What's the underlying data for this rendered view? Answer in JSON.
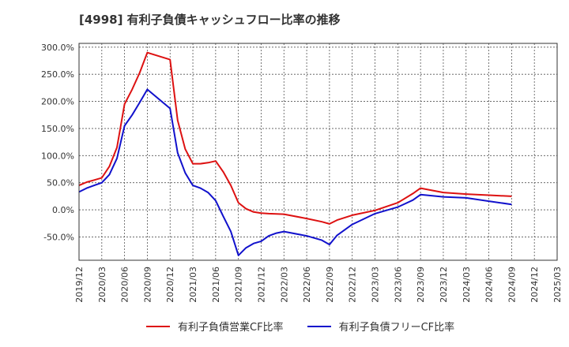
{
  "chart_data": {
    "type": "line",
    "title": "[4998]  有利子負債キャッシュフロー比率の推移",
    "x": [
      "2019/12",
      "2020/03",
      "2020/06",
      "2020/09",
      "2020/12",
      "2021/03",
      "2021/06",
      "2021/09",
      "2021/12",
      "2022/03",
      "2022/06",
      "2022/09",
      "2022/12",
      "2023/03",
      "2023/06",
      "2023/09",
      "2023/12",
      "2024/03",
      "2024/06",
      "2024/09",
      "2024/12",
      "2025/03"
    ],
    "y_ticks": [
      "300.0%",
      "250.0%",
      "200.0%",
      "150.0%",
      "100.0%",
      "50.0%",
      "0.0%",
      "-50.0%"
    ],
    "ylim": [
      -93,
      307
    ],
    "grid": true,
    "legend_position": "bottom",
    "series": [
      {
        "name": "有利子負債営業CF比率",
        "color": "#dd1111",
        "points": [
          [
            "2019/12",
            45
          ],
          [
            "2020/01",
            51
          ],
          [
            "2020/02",
            55
          ],
          [
            "2020/03",
            59
          ],
          [
            "2020/04",
            80
          ],
          [
            "2020/05",
            115
          ],
          [
            "2020/06",
            195
          ],
          [
            "2020/07",
            222
          ],
          [
            "2020/08",
            253
          ],
          [
            "2020/09",
            290
          ],
          [
            "2020/12",
            277
          ],
          [
            "2021/01",
            165
          ],
          [
            "2021/02",
            112
          ],
          [
            "2021/03",
            85
          ],
          [
            "2021/04",
            85
          ],
          [
            "2021/05",
            87
          ],
          [
            "2021/06",
            90
          ],
          [
            "2021/07",
            70
          ],
          [
            "2021/08",
            45
          ],
          [
            "2021/09",
            13
          ],
          [
            "2021/10",
            2
          ],
          [
            "2021/11",
            -4
          ],
          [
            "2021/12",
            -6
          ],
          [
            "2022/01",
            -7
          ],
          [
            "2022/03",
            -8
          ],
          [
            "2022/06",
            -16
          ],
          [
            "2022/08",
            -22
          ],
          [
            "2022/09",
            -26
          ],
          [
            "2022/10",
            -19
          ],
          [
            "2022/12",
            -10
          ],
          [
            "2023/03",
            -1
          ],
          [
            "2023/06",
            13
          ],
          [
            "2023/08",
            30
          ],
          [
            "2023/09",
            40
          ],
          [
            "2023/12",
            32
          ],
          [
            "2024/03",
            29
          ],
          [
            "2024/06",
            27
          ],
          [
            "2024/09",
            25
          ]
        ]
      },
      {
        "name": "有利子負債フリーCF比率",
        "color": "#1111cc",
        "points": [
          [
            "2019/12",
            33
          ],
          [
            "2020/01",
            40
          ],
          [
            "2020/02",
            45
          ],
          [
            "2020/03",
            50
          ],
          [
            "2020/04",
            65
          ],
          [
            "2020/05",
            95
          ],
          [
            "2020/06",
            155
          ],
          [
            "2020/07",
            175
          ],
          [
            "2020/08",
            198
          ],
          [
            "2020/09",
            222
          ],
          [
            "2020/12",
            187
          ],
          [
            "2021/01",
            105
          ],
          [
            "2021/02",
            68
          ],
          [
            "2021/03",
            45
          ],
          [
            "2021/04",
            40
          ],
          [
            "2021/05",
            32
          ],
          [
            "2021/06",
            17
          ],
          [
            "2021/07",
            -12
          ],
          [
            "2021/08",
            -40
          ],
          [
            "2021/09",
            -84
          ],
          [
            "2021/10",
            -70
          ],
          [
            "2021/11",
            -62
          ],
          [
            "2021/12",
            -58
          ],
          [
            "2022/01",
            -48
          ],
          [
            "2022/02",
            -43
          ],
          [
            "2022/03",
            -40
          ],
          [
            "2022/06",
            -48
          ],
          [
            "2022/08",
            -56
          ],
          [
            "2022/09",
            -64
          ],
          [
            "2022/10",
            -47
          ],
          [
            "2022/12",
            -27
          ],
          [
            "2023/03",
            -7
          ],
          [
            "2023/06",
            5
          ],
          [
            "2023/08",
            18
          ],
          [
            "2023/09",
            28
          ],
          [
            "2023/12",
            24
          ],
          [
            "2024/03",
            22
          ],
          [
            "2024/06",
            16
          ],
          [
            "2024/09",
            10
          ]
        ]
      }
    ]
  }
}
